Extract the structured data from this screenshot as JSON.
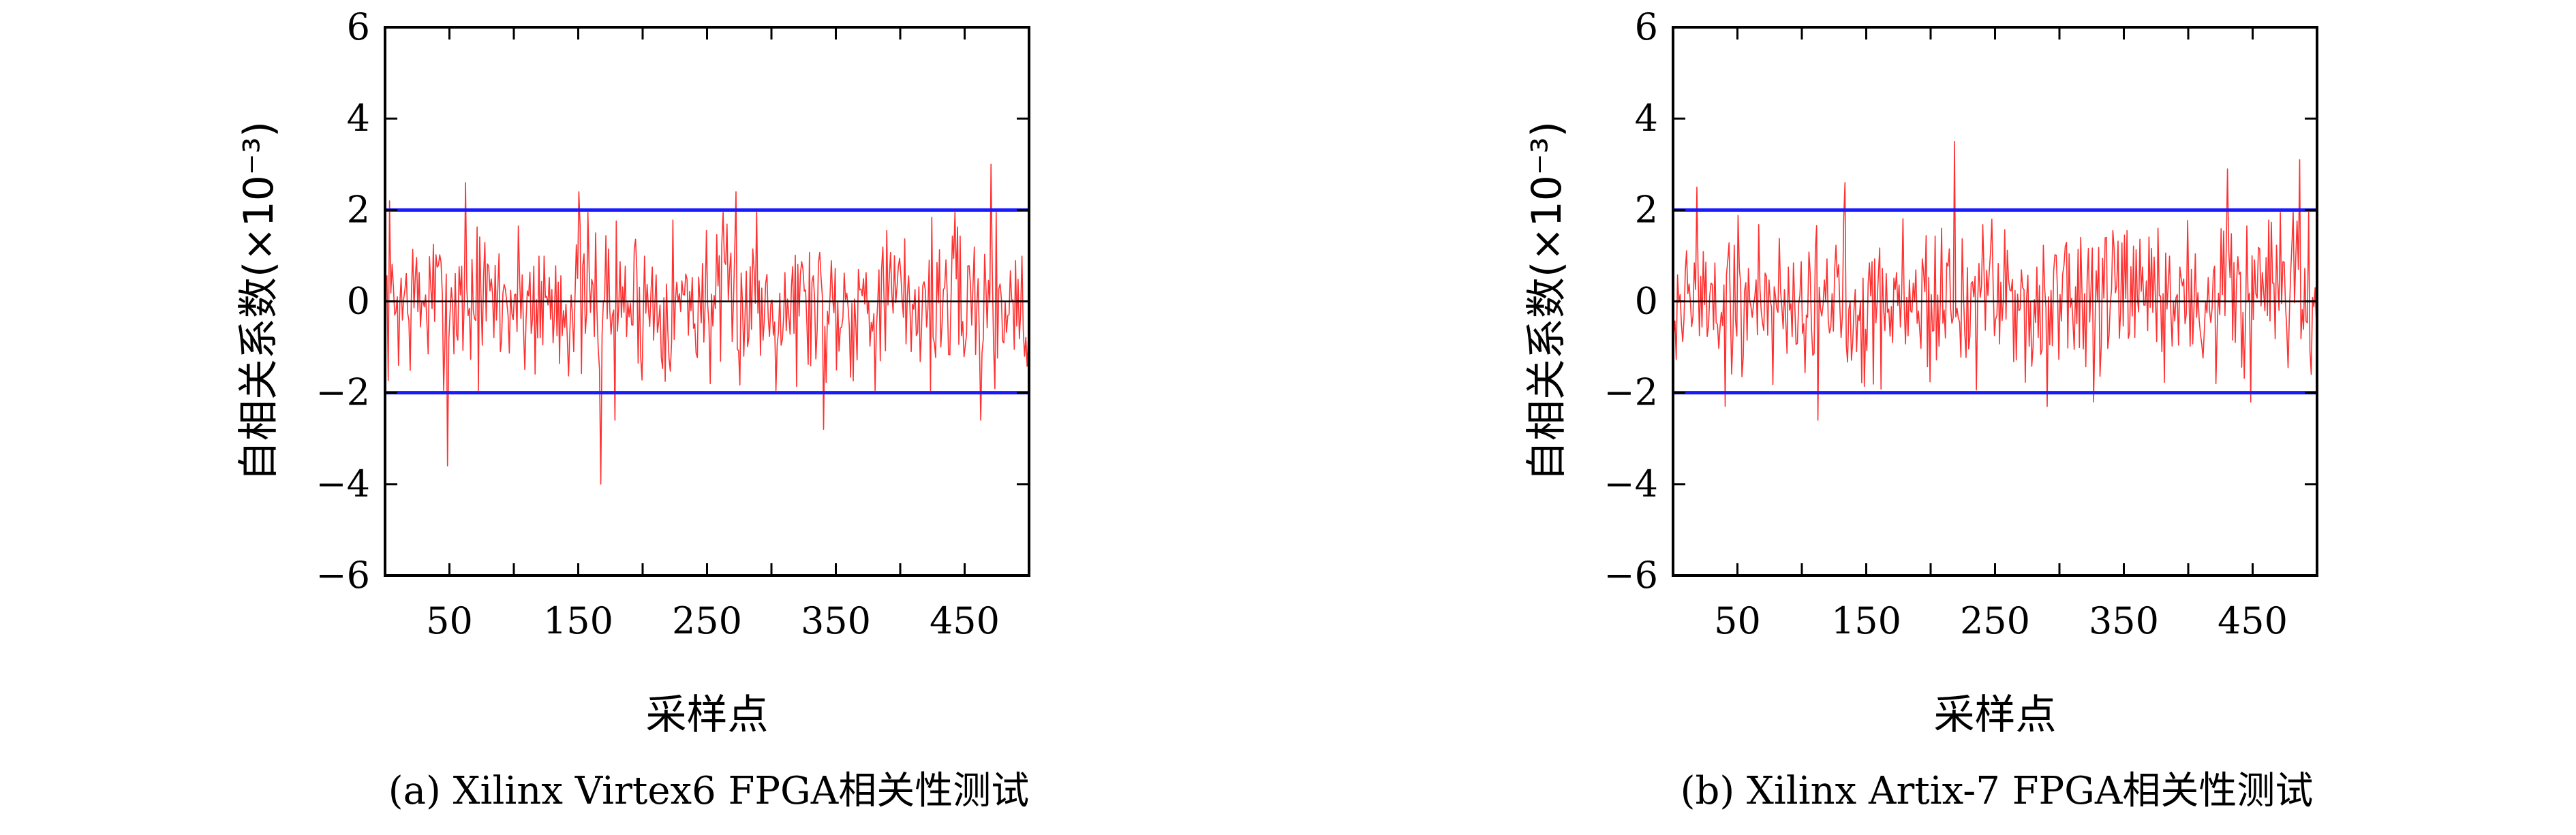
{
  "chart_data": [
    {
      "type": "line",
      "caption": "(a) Xilinx Virtex6 FPGA相关性测试",
      "xlabel": "采样点",
      "ylabel": "自相关系数(×10⁻³)",
      "xlim": [
        0,
        500
      ],
      "ylim": [
        -6,
        6
      ],
      "xticks": [
        50,
        150,
        250,
        350,
        450
      ],
      "yticks": [
        -6,
        -4,
        -2,
        0,
        2,
        4,
        6
      ],
      "bounds": [
        2,
        -2
      ],
      "colors": {
        "series": "#ff3030",
        "bounds": "#1a1aff",
        "zero": "#000000"
      },
      "seed": 7,
      "spikes": [
        [
          3,
          2.2
        ],
        [
          48,
          -3.6
        ],
        [
          62,
          2.6
        ],
        [
          150,
          2.4
        ],
        [
          167,
          -4.0
        ],
        [
          178,
          -2.6
        ],
        [
          272,
          2.4
        ],
        [
          288,
          2.0
        ],
        [
          340,
          -2.8
        ],
        [
          462,
          -2.6
        ],
        [
          470,
          3.0
        ],
        [
          496,
          -1.2
        ]
      ],
      "series": [
        {
          "name": "",
          "values": []
        }
      ]
    },
    {
      "type": "line",
      "caption": "(b) Xilinx Artix-7 FPGA相关性测试",
      "xlabel": "采样点",
      "ylabel": "自相关系数(×10⁻³)",
      "xlim": [
        0,
        500
      ],
      "ylim": [
        -6,
        6
      ],
      "xticks": [
        50,
        150,
        250,
        350,
        450
      ],
      "yticks": [
        -6,
        -4,
        -2,
        0,
        2,
        4,
        6
      ],
      "bounds": [
        2,
        -2
      ],
      "colors": {
        "series": "#ff3030",
        "bounds": "#1a1aff",
        "zero": "#000000"
      },
      "seed": 19,
      "spikes": [
        [
          18,
          2.5
        ],
        [
          40,
          -2.3
        ],
        [
          112,
          -2.6
        ],
        [
          133,
          2.6
        ],
        [
          218,
          3.5
        ],
        [
          290,
          -2.3
        ],
        [
          326,
          -2.2
        ],
        [
          430,
          2.9
        ],
        [
          448,
          -2.2
        ],
        [
          486,
          3.1
        ],
        [
          495,
          -1.6
        ]
      ],
      "series": [
        {
          "name": "",
          "values": []
        }
      ]
    }
  ]
}
